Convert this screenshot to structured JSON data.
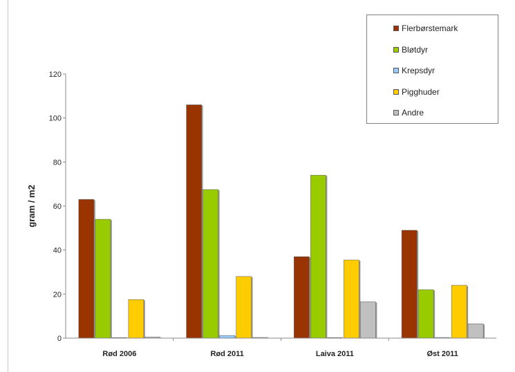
{
  "chart_data": {
    "type": "bar",
    "title": "",
    "xlabel": "",
    "ylabel": "gram / m2",
    "ylim": [
      0,
      120
    ],
    "yticks": [
      "0",
      "20",
      "40",
      "60",
      "80",
      "100",
      "120"
    ],
    "categories": [
      "Rød 2006",
      "Rød 2011",
      "Laiva 2011",
      "Øst 2011"
    ],
    "legend_position": "top-right",
    "grid": false,
    "series": [
      {
        "name": "Flerbørstemark",
        "color": "#993300",
        "values": [
          63,
          106,
          37,
          49
        ]
      },
      {
        "name": "Bløtdyr",
        "color": "#99cc00",
        "values": [
          54,
          67.5,
          74,
          22
        ]
      },
      {
        "name": "Krepsdyr",
        "color": "#99ccff",
        "values": [
          0.2,
          1.2,
          0.2,
          0.3
        ]
      },
      {
        "name": "Pigghuder",
        "color": "#ffcc00",
        "values": [
          17.5,
          28,
          35.5,
          24
        ]
      },
      {
        "name": "Andre",
        "color": "#c0c0c0",
        "values": [
          0.5,
          0.3,
          16.5,
          6.5
        ]
      }
    ]
  }
}
